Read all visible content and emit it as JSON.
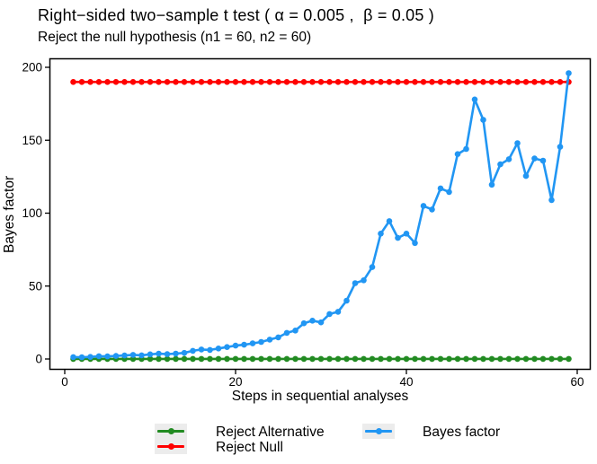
{
  "window": {
    "background": "#FFFFFF",
    "panel_border_color": "#000000"
  },
  "chart_data": {
    "type": "line",
    "title": "Right−sided two−sample t test ( α = 0.005 ,  β = 0.05 )",
    "subtitle": "Reject the null hypothesis (n1 = 60, n2 = 60)",
    "xlabel": "Steps in sequential analyses",
    "ylabel": "Bayes factor",
    "x_ticks": [
      0,
      20,
      40,
      60
    ],
    "y_ticks": [
      0,
      50,
      100,
      150,
      200
    ],
    "xlim": [
      -1.8,
      61.6
    ],
    "ylim": [
      -7.4,
      206
    ],
    "grid": false,
    "legend_position": "bottom",
    "legend_key_background": "#ECECEC",
    "series": [
      {
        "name": "Reject Alternative",
        "type": "constant",
        "y": 0.05,
        "x_start": 1,
        "x_end": 59,
        "color": "#228B22"
      },
      {
        "name": "Reject Null",
        "type": "constant",
        "y": 190,
        "x_start": 1,
        "x_end": 59,
        "color": "#FF0000"
      },
      {
        "name": "Bayes factor",
        "type": "line",
        "x_start": 1,
        "color": "#2196F3",
        "values": [
          1.3,
          1.2,
          1.4,
          1.9,
          1.8,
          2.1,
          2.4,
          2.8,
          2.5,
          3.2,
          3.6,
          3.3,
          3.7,
          4.2,
          5.6,
          6.5,
          6.2,
          7.2,
          8.2,
          9.2,
          9.8,
          10.7,
          11.7,
          13.3,
          14.8,
          17.9,
          19.5,
          24.5,
          26.3,
          25.1,
          30.8,
          32.4,
          40.0,
          52.0,
          54.0,
          63.0,
          86.0,
          94.5,
          83.0,
          86.0,
          79.5,
          105.0,
          102.5,
          117.0,
          114.5,
          140.5,
          144.0,
          178.0,
          164.0,
          119.5,
          133.5,
          137.0,
          148.0,
          125.5,
          137.5,
          136.0,
          109.0,
          145.5,
          196.0
        ]
      }
    ]
  }
}
